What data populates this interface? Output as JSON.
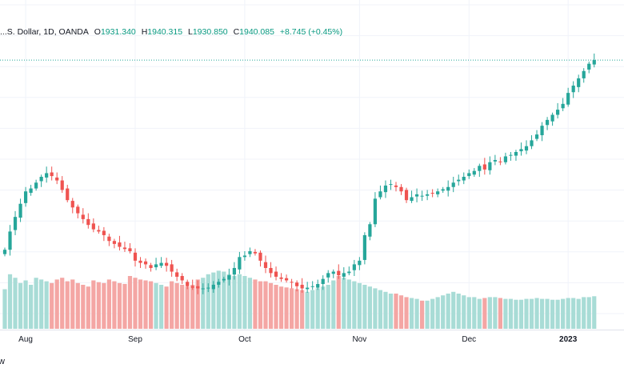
{
  "legend": {
    "symbol": "...S. Dollar, 1D, OANDA",
    "o_label": "O",
    "o_value": "1931.340",
    "h_label": "H",
    "h_value": "1940.315",
    "l_label": "L",
    "l_value": "1930.850",
    "c_label": "C",
    "c_value": "1940.085",
    "change": "+8.745 (+0.45%)"
  },
  "bottom_bar": {
    "link_text": "w"
  },
  "colors": {
    "up": "#26a69a",
    "down": "#ef5350",
    "vol_up": "#a8dcd6",
    "vol_down": "#f4a6a4",
    "grid": "#f0f3fa",
    "price_line": "#26a69a"
  },
  "chart_data": {
    "type": "candlestick",
    "title": "",
    "xlabel": "",
    "ylabel": "",
    "ylim": [
      1610,
      1950
    ],
    "grid": true,
    "x_ticks": [
      {
        "label": "Aug",
        "index": 4
      },
      {
        "label": "Sep",
        "index": 25
      },
      {
        "label": "Oct",
        "index": 46
      },
      {
        "label": "Nov",
        "index": 68
      },
      {
        "label": "Dec",
        "index": 89
      },
      {
        "label": "2023",
        "index": 108,
        "bold": true
      }
    ],
    "close_trace": [
      1680,
      1705,
      1725,
      1743,
      1760,
      1764,
      1772,
      1780,
      1785,
      1781,
      1775,
      1762,
      1748,
      1738,
      1730,
      1722,
      1714,
      1708,
      1705,
      1700,
      1692,
      1688,
      1684,
      1681,
      1678,
      1665,
      1662,
      1660,
      1655,
      1660,
      1662,
      1658,
      1650,
      1643,
      1638,
      1630,
      1628,
      1627,
      1627,
      1628,
      1632,
      1636,
      1640,
      1645,
      1655,
      1670,
      1672,
      1678,
      1675,
      1665,
      1655,
      1648,
      1643,
      1640,
      1638,
      1635,
      1630,
      1627,
      1628,
      1630,
      1633,
      1640,
      1648,
      1650,
      1645,
      1648,
      1650,
      1660,
      1665,
      1700,
      1715,
      1750,
      1760,
      1768,
      1770,
      1766,
      1760,
      1748,
      1752,
      1756,
      1754,
      1756,
      1757,
      1760,
      1763,
      1766,
      1772,
      1776,
      1780,
      1785,
      1788,
      1795,
      1790,
      1800,
      1803,
      1800,
      1808,
      1810,
      1814,
      1818,
      1822,
      1830,
      1838,
      1850,
      1858,
      1865,
      1872,
      1880,
      1895,
      1905,
      1915,
      1925,
      1935,
      1940
    ],
    "volumes": [
      45,
      62,
      58,
      52,
      55,
      50,
      58,
      56,
      54,
      52,
      56,
      58,
      54,
      56,
      52,
      50,
      48,
      55,
      53,
      52,
      56,
      54,
      52,
      51,
      60,
      58,
      56,
      55,
      54,
      52,
      50,
      48,
      54,
      52,
      50,
      48,
      50,
      56,
      58,
      62,
      64,
      66,
      65,
      62,
      60,
      62,
      60,
      58,
      56,
      54,
      54,
      52,
      50,
      48,
      47,
      46,
      45,
      44,
      42,
      44,
      46,
      48,
      50,
      55,
      60,
      58,
      56,
      54,
      52,
      50,
      48,
      46,
      44,
      42,
      40,
      40,
      38,
      36,
      35,
      34,
      32,
      32,
      34,
      36,
      38,
      40,
      42,
      40,
      38,
      36,
      36,
      34,
      35,
      36,
      36,
      35,
      34,
      34,
      33,
      33,
      34,
      34,
      35,
      34,
      34,
      33,
      33,
      34,
      35,
      35,
      34,
      36,
      36,
      37
    ],
    "volume_pattern": "ordinal"
  }
}
